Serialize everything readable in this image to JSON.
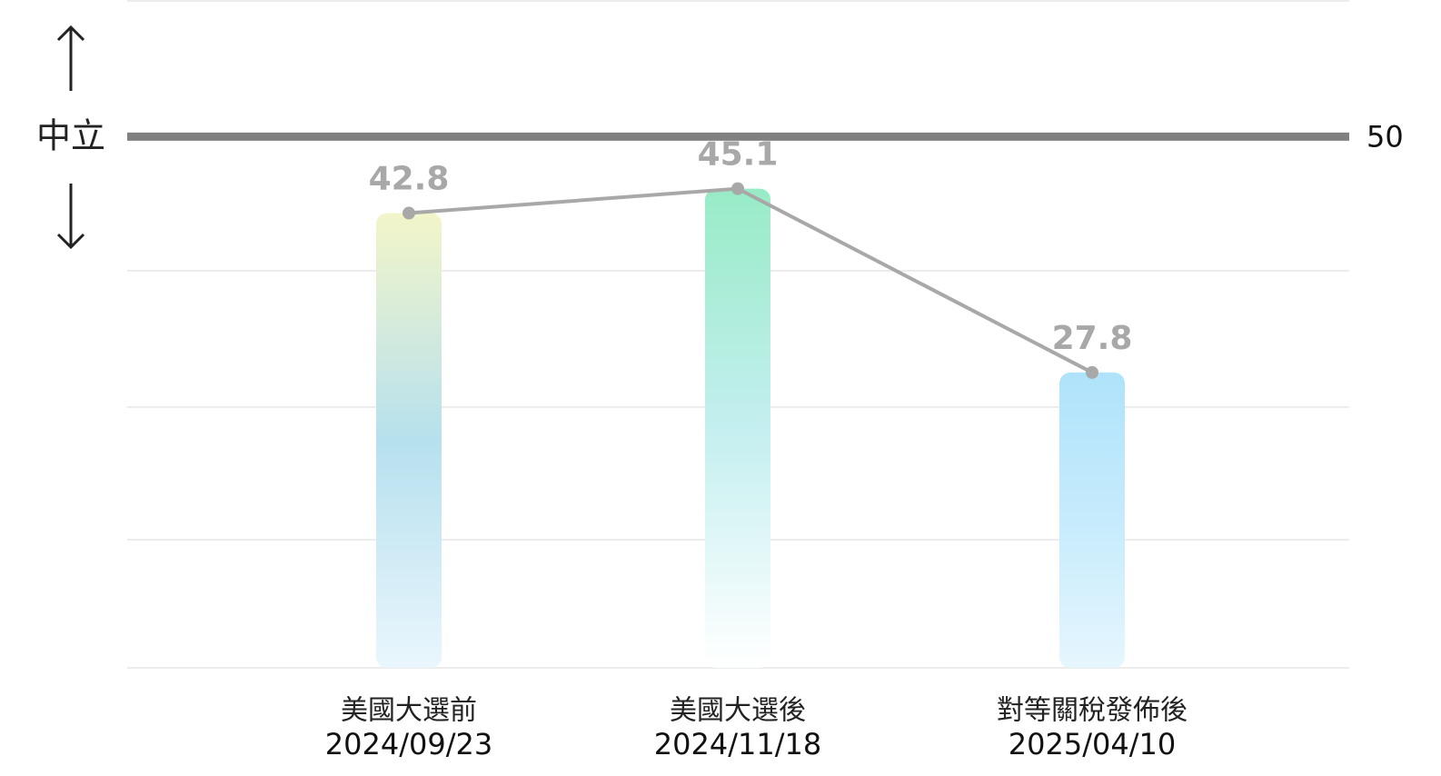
{
  "chart_data": {
    "type": "bar-line",
    "categories": [
      "美國大選前",
      "美國大選後",
      "對等關稅發佈後"
    ],
    "dates": [
      "2024/09/23",
      "2024/11/18",
      "2025/04/10"
    ],
    "values": [
      42.8,
      45.1,
      27.8
    ],
    "line_color": "#a8a8a8",
    "bar_gradients": [
      [
        "#f3f5c9",
        "#b6e0ee",
        "#eaf6fd"
      ],
      [
        "#98ebc6",
        "#c4eff0",
        "#ffffff"
      ],
      [
        "#afe3fb",
        "#c6ebfc",
        "#e6f6fe"
      ]
    ],
    "ylim": [
      0,
      62
    ],
    "reference": {
      "value": 50,
      "label": "中立",
      "color": "#808080"
    },
    "yticks": [
      50
    ]
  }
}
